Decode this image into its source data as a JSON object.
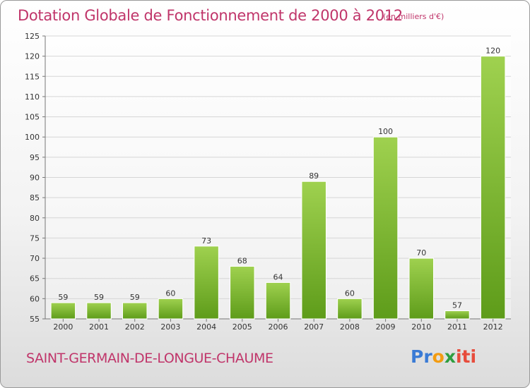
{
  "title": "Dotation Globale de Fonctionnement de 2000 à 2012",
  "unit_note": "(en milliers d'€)",
  "commune": "SAINT-GERMAIN-DE-LONGUE-CHAUME",
  "logo": {
    "parts": [
      "Pr",
      "o",
      "x",
      "iti"
    ],
    "colors": [
      "#3a7bd5",
      "#f39c12",
      "#2e9e3f",
      "#e74c3c"
    ]
  },
  "colors": {
    "accent": "#c0356a",
    "bar_light": "#9fd14f",
    "bar_dark": "#5e9c1a"
  },
  "chart_data": {
    "type": "bar",
    "title": "Dotation Globale de Fonctionnement de 2000 à 2012",
    "subtitle": "(en milliers d'€)",
    "xlabel": "",
    "ylabel": "",
    "categories": [
      "2000",
      "2001",
      "2002",
      "2003",
      "2004",
      "2005",
      "2006",
      "2007",
      "2008",
      "2009",
      "2010",
      "2011",
      "2012"
    ],
    "values": [
      59,
      59,
      59,
      60,
      73,
      68,
      64,
      89,
      60,
      100,
      70,
      57,
      120
    ],
    "ylim": [
      55,
      125
    ],
    "yticks": [
      55,
      60,
      65,
      70,
      75,
      80,
      85,
      90,
      95,
      100,
      105,
      110,
      115,
      120,
      125
    ],
    "grid": true,
    "legend": "none"
  }
}
